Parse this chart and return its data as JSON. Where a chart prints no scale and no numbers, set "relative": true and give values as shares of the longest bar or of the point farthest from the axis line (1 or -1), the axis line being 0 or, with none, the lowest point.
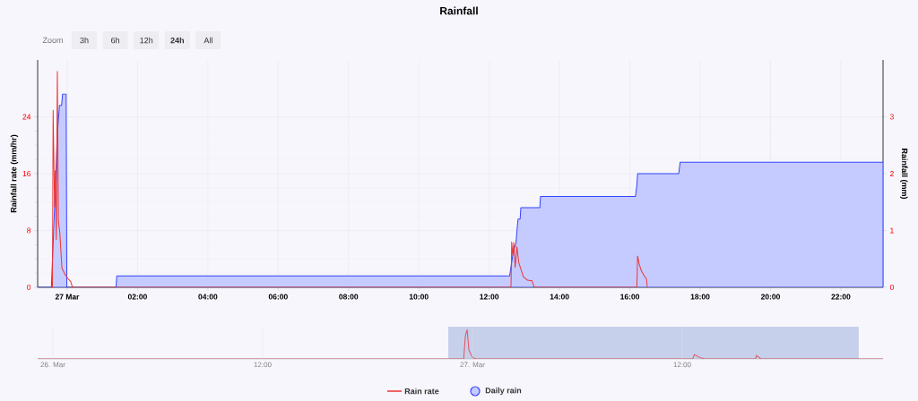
{
  "chart_data": [
    {
      "type": "line",
      "title": "Rainfall",
      "ylabel": "Rainfall rate (mm/hr)",
      "y2label": "Rainfall (mm)",
      "xlim": [
        -0.84,
        23.2
      ],
      "xticks": [
        {
          "value": 0,
          "label": "27 Mar"
        },
        {
          "value": 2,
          "label": "02:00"
        },
        {
          "value": 4,
          "label": "04:00"
        },
        {
          "value": 6,
          "label": "06:00"
        },
        {
          "value": 8,
          "label": "08:00"
        },
        {
          "value": 10,
          "label": "10:00"
        },
        {
          "value": 12,
          "label": "12:00"
        },
        {
          "value": 14,
          "label": "14:00"
        },
        {
          "value": 16,
          "label": "16:00"
        },
        {
          "value": 18,
          "label": "18:00"
        },
        {
          "value": 20,
          "label": "20:00"
        },
        {
          "value": 22,
          "label": "22:00"
        }
      ],
      "ylim": [
        0,
        32
      ],
      "yticks": [
        0,
        8,
        16,
        24
      ],
      "y2lim": [
        0,
        4
      ],
      "y2ticks": [
        0,
        1,
        2,
        3
      ],
      "grid": true,
      "legend": "bottom",
      "annotations": [
        "Zoom",
        "3h",
        "6h",
        "12h",
        "**24h**",
        "All"
      ],
      "series": [
        {
          "name": "Daily rain",
          "type": "area",
          "axis": "y2",
          "color": "#3344ff",
          "x": [
            -0.84,
            -0.45,
            -0.36,
            -0.28,
            -0.22,
            -0.16,
            -0.13,
            -0.03,
            -0.01,
            1.39,
            1.41,
            12.58,
            12.63,
            12.69,
            12.76,
            12.79,
            12.82,
            12.88,
            12.9,
            13.44,
            13.46,
            16.16,
            16.2,
            16.22,
            17.39,
            17.43,
            23.2
          ],
          "values": [
            0,
            0,
            1.4,
            2.7,
            3.2,
            3.2,
            3.4,
            3.4,
            0,
            0,
            0.2,
            0.2,
            0.4,
            0.64,
            0.77,
            1.0,
            1.2,
            1.2,
            1.4,
            1.4,
            1.6,
            1.6,
            1.8,
            2.0,
            2.0,
            2.2,
            2.2
          ]
        },
        {
          "name": "Rain rate",
          "type": "line",
          "color": "#ee3333",
          "x": [
            -0.42,
            -0.4,
            -0.36,
            -0.34,
            -0.31,
            -0.28,
            -0.25,
            -0.21,
            -0.15,
            -0.05,
            0.03,
            0.1,
            0.15,
            12.62,
            12.64,
            12.67,
            12.7,
            12.74,
            12.79,
            12.84,
            12.97,
            13.09,
            13.22,
            13.28,
            16.2,
            16.22,
            16.27,
            16.33,
            16.4,
            16.47,
            16.5
          ],
          "values": [
            0,
            24.9,
            11.3,
            16.4,
            6.7,
            30.4,
            9.3,
            7.7,
            2.7,
            1.7,
            1.2,
            0.8,
            0,
            0,
            6.4,
            4.5,
            6.3,
            2.8,
            5.7,
            3.5,
            1.5,
            1.0,
            0.9,
            0,
            0,
            4.4,
            3.2,
            2.3,
            1.7,
            1.2,
            0
          ]
        }
      ]
    },
    {
      "type": "line",
      "relative": true,
      "grid": "x",
      "xlim": [
        -24.87,
        23.49
      ],
      "xticks": [
        {
          "value": -24,
          "label": "26. Mar"
        },
        {
          "value": -12,
          "label": "12:00"
        },
        {
          "value": 0,
          "label": "27. Mar"
        },
        {
          "value": 12,
          "label": "12:00"
        }
      ],
      "bands": [
        {
          "axis": "x",
          "from": -1.38,
          "to": 22.1,
          "color": "#c7d0ea"
        }
      ],
      "series": [
        {
          "color": "#e05060",
          "x": [
            -24.87,
            -0.5,
            -0.4,
            -0.3,
            -0.2,
            0,
            0.2,
            12.6,
            12.7,
            12.8,
            13,
            13.3,
            16.2,
            16.25,
            16.4,
            16.5,
            23.49
          ],
          "values": [
            0,
            0,
            0.8,
            1,
            0.3,
            0.05,
            0,
            0,
            0.15,
            0.12,
            0.05,
            0,
            0,
            0.12,
            0.05,
            0,
            0
          ]
        }
      ]
    }
  ]
}
